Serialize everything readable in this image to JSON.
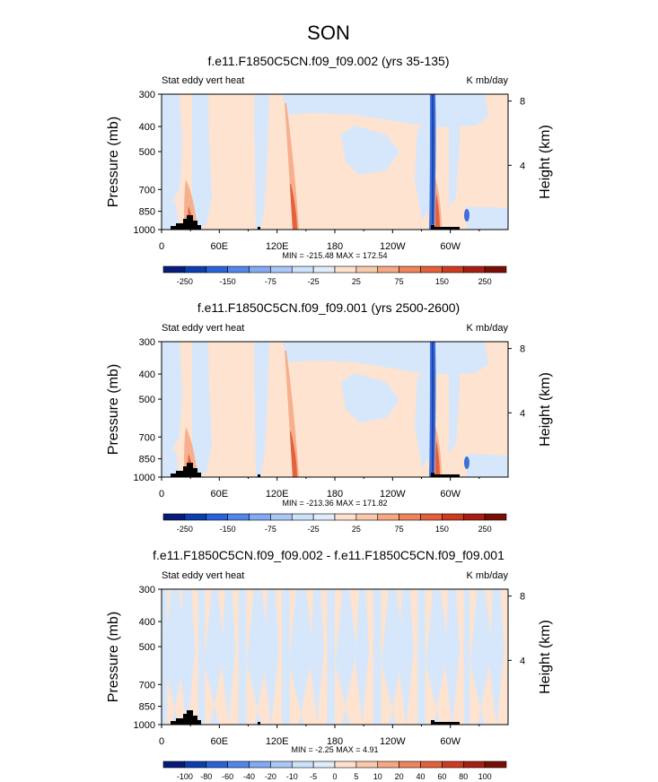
{
  "figure": {
    "title": "SON",
    "y_axis_left_label": "Pressure (mb)",
    "y_axis_right_label": "Height (km)",
    "y_ticks_left": [
      "300",
      "400",
      "500",
      "700",
      "850",
      "1000"
    ],
    "y_ticks_right": [
      "8",
      "4"
    ],
    "x_ticks": [
      "0",
      "60E",
      "120E",
      "180",
      "120W",
      "60W"
    ]
  },
  "chart_data": [
    {
      "type": "heatmap",
      "title": "f.e11.F1850C5CN.f09_f09.002 (yrs 35-135)",
      "left_string": "Stat eddy vert heat",
      "right_string": "K mb/day",
      "xlabel": "",
      "ylabel": "Pressure (mb)",
      "ylabel_right": "Height (km)",
      "x_ticks": [
        "0",
        "60E",
        "120E",
        "180",
        "120W",
        "60W"
      ],
      "xlim": [
        0,
        360
      ],
      "y_ticks": [
        300,
        400,
        500,
        700,
        850,
        1000
      ],
      "ylim": [
        1000,
        300
      ],
      "y_scale": "log",
      "min_max_text": "MIN = -215.48  MAX = 172.54",
      "min": -215.48,
      "max": 172.54,
      "colorbar_labels": [
        "-250",
        "-150",
        "-75",
        "-25",
        "25",
        "75",
        "150",
        "250"
      ],
      "colorbar_colors": [
        "#061c7a",
        "#0b3fae",
        "#2a63d8",
        "#5287ea",
        "#82aaf2",
        "#aac8f6",
        "#cde1fa",
        "#e0ecfc",
        "#fde1cc",
        "#f9c9ab",
        "#f5a882",
        "#ee855a",
        "#e2613a",
        "#cc3c20",
        "#a61f12",
        "#7a0f08"
      ],
      "background_value": "0 to 25 (light orange) over most of domain, -25 to 0 (light blue) regions"
    },
    {
      "type": "heatmap",
      "title": "f.e11.F1850C5CN.f09_f09.001 (yrs 2500-2600)",
      "left_string": "Stat eddy vert heat",
      "right_string": "K mb/day",
      "xlabel": "",
      "ylabel": "Pressure (mb)",
      "ylabel_right": "Height (km)",
      "x_ticks": [
        "0",
        "60E",
        "120E",
        "180",
        "120W",
        "60W"
      ],
      "xlim": [
        0,
        360
      ],
      "y_ticks": [
        300,
        400,
        500,
        700,
        850,
        1000
      ],
      "ylim": [
        1000,
        300
      ],
      "y_scale": "log",
      "min_max_text": "MIN = -213.36  MAX = 171.82",
      "min": -213.36,
      "max": 171.82,
      "colorbar_labels": [
        "-250",
        "-150",
        "-75",
        "-25",
        "25",
        "75",
        "150",
        "250"
      ],
      "colorbar_colors": [
        "#061c7a",
        "#0b3fae",
        "#2a63d8",
        "#5287ea",
        "#82aaf2",
        "#aac8f6",
        "#cde1fa",
        "#e0ecfc",
        "#fde1cc",
        "#f9c9ab",
        "#f5a882",
        "#ee855a",
        "#e2613a",
        "#cc3c20",
        "#a61f12",
        "#7a0f08"
      ],
      "background_value": "0 to 25 (light orange) over most of domain, -25 to 0 (light blue) regions"
    },
    {
      "type": "heatmap",
      "title": "f.e11.F1850C5CN.f09_f09.002 - f.e11.F1850C5CN.f09_f09.001",
      "left_string": "Stat eddy vert heat",
      "right_string": "K mb/day",
      "xlabel": "",
      "ylabel": "Pressure (mb)",
      "ylabel_right": "Height (km)",
      "x_ticks": [
        "0",
        "60E",
        "120E",
        "180",
        "120W",
        "60W"
      ],
      "xlim": [
        0,
        360
      ],
      "y_ticks": [
        300,
        400,
        500,
        700,
        850,
        1000
      ],
      "ylim": [
        1000,
        300
      ],
      "y_scale": "log",
      "min_max_text": "MIN = -2.25  MAX =  4.91",
      "min": -2.25,
      "max": 4.91,
      "colorbar_labels": [
        "-100",
        "-80",
        "-60",
        "-40",
        "-20",
        "-10",
        "-5",
        "0",
        "5",
        "10",
        "20",
        "40",
        "60",
        "80",
        "100"
      ],
      "colorbar_colors": [
        "#061c7a",
        "#0b3fae",
        "#2a63d8",
        "#5287ea",
        "#82aaf2",
        "#aac8f6",
        "#cde1fa",
        "#e0ecfc",
        "#fde1cc",
        "#f9c9ab",
        "#f5a882",
        "#ee855a",
        "#e2613a",
        "#cc3c20",
        "#a61f12",
        "#7a0f08"
      ],
      "background_value": "mixed 0 to 5 (light orange) and -5 to 0 (light blue)"
    }
  ],
  "colors": {
    "light_blue": "#d6e7fb",
    "light_orange": "#fde3d0",
    "mid_orange": "#f6b08e",
    "strong_red": "#e5603c",
    "strong_blue": "#3f6fd8",
    "deep_blue": "#1f47b3",
    "topography": "#000000"
  }
}
